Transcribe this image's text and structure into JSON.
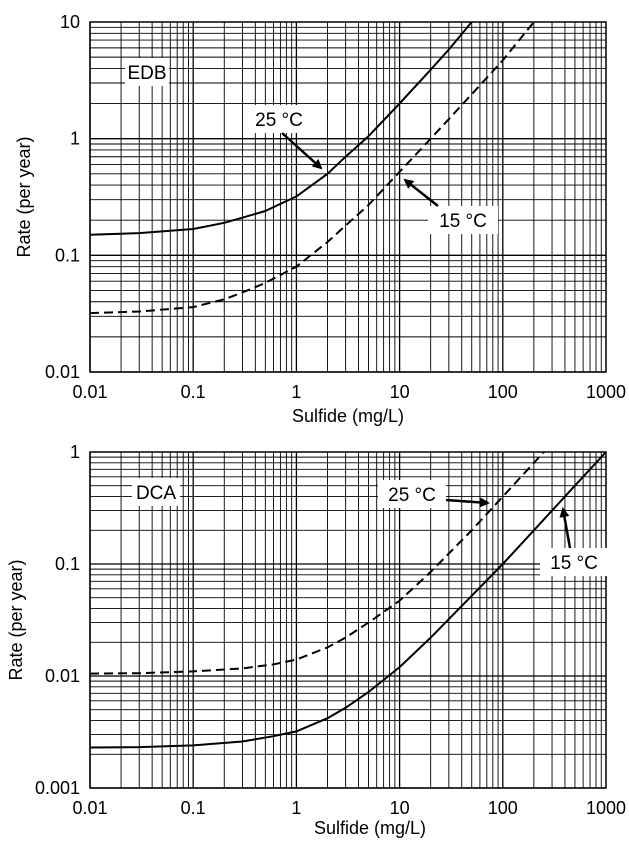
{
  "chart_data": [
    {
      "type": "line",
      "xlabel": "Sulfide (mg/L)",
      "ylabel": "Rate (per year)",
      "xscale": "log",
      "yscale": "log",
      "xlim": [
        0.01,
        1000
      ],
      "ylim": [
        0.01,
        10
      ],
      "grid": true,
      "x_ticks": [
        "0.01",
        "0.1",
        "1",
        "10",
        "100",
        "1000"
      ],
      "y_ticks": [
        "0.01",
        "0.1",
        "1",
        "10"
      ],
      "box_label": "EDB",
      "series": [
        {
          "name": "25 °C",
          "style": "solid",
          "points": [
            [
              0.01,
              0.15
            ],
            [
              0.03,
              0.155
            ],
            [
              0.1,
              0.168
            ],
            [
              0.2,
              0.19
            ],
            [
              0.3,
              0.21
            ],
            [
              0.5,
              0.24
            ],
            [
              1,
              0.32
            ],
            [
              2,
              0.5
            ],
            [
              3,
              0.7
            ],
            [
              5,
              1.05
            ],
            [
              10,
              2.0
            ],
            [
              20,
              3.9
            ],
            [
              30,
              5.8
            ],
            [
              50,
              10
            ]
          ]
        },
        {
          "name": "15 °C",
          "style": "dashed",
          "points": [
            [
              0.01,
              0.032
            ],
            [
              0.03,
              0.033
            ],
            [
              0.1,
              0.036
            ],
            [
              0.2,
              0.042
            ],
            [
              0.3,
              0.048
            ],
            [
              0.5,
              0.058
            ],
            [
              1,
              0.08
            ],
            [
              2,
              0.13
            ],
            [
              3,
              0.18
            ],
            [
              5,
              0.27
            ],
            [
              10,
              0.52
            ],
            [
              20,
              1.0
            ],
            [
              50,
              2.4
            ],
            [
              100,
              4.7
            ],
            [
              200,
              10
            ]
          ]
        }
      ],
      "annotations": [
        "25 °C",
        "15 °C"
      ]
    },
    {
      "type": "line",
      "xlabel": "Sulfide (mg/L)",
      "ylabel": "Rate (per year)",
      "xscale": "log",
      "yscale": "log",
      "xlim": [
        0.01,
        1000
      ],
      "ylim": [
        0.001,
        1
      ],
      "grid": true,
      "x_ticks": [
        "0.01",
        "0.1",
        "1",
        "10",
        "100",
        "1000"
      ],
      "y_ticks": [
        "0.001",
        "0.01",
        "0.1",
        "1"
      ],
      "box_label": "DCA",
      "series": [
        {
          "name": "25 °C",
          "style": "dashed",
          "points": [
            [
              0.01,
              0.0105
            ],
            [
              0.03,
              0.0106
            ],
            [
              0.1,
              0.011
            ],
            [
              0.3,
              0.0117
            ],
            [
              0.6,
              0.0127
            ],
            [
              1,
              0.014
            ],
            [
              2,
              0.018
            ],
            [
              3,
              0.022
            ],
            [
              5,
              0.03
            ],
            [
              10,
              0.047
            ],
            [
              20,
              0.085
            ],
            [
              50,
              0.2
            ],
            [
              100,
              0.4
            ],
            [
              250,
              1.0
            ]
          ]
        },
        {
          "name": "15 °C",
          "style": "solid",
          "points": [
            [
              0.01,
              0.0023
            ],
            [
              0.03,
              0.00232
            ],
            [
              0.1,
              0.0024
            ],
            [
              0.3,
              0.0026
            ],
            [
              0.6,
              0.0029
            ],
            [
              1,
              0.0032
            ],
            [
              2,
              0.0042
            ],
            [
              3,
              0.0052
            ],
            [
              5,
              0.0072
            ],
            [
              10,
              0.012
            ],
            [
              20,
              0.022
            ],
            [
              50,
              0.052
            ],
            [
              100,
              0.1
            ],
            [
              200,
              0.2
            ],
            [
              500,
              0.5
            ],
            [
              1000,
              1.0
            ]
          ]
        }
      ],
      "annotations": [
        "25 °C",
        "15 °C"
      ]
    }
  ]
}
